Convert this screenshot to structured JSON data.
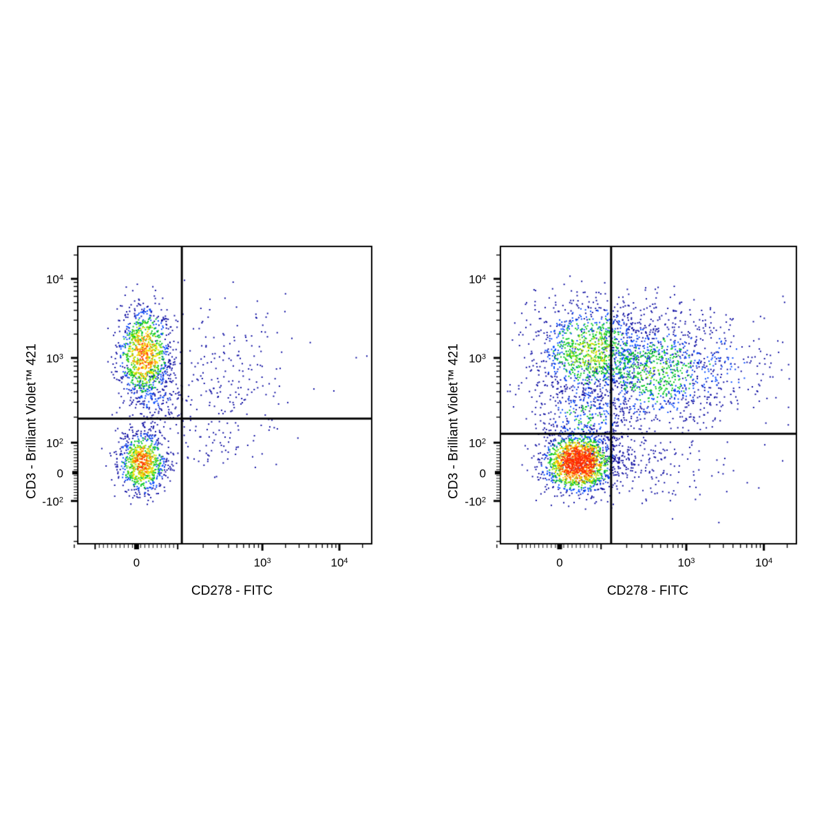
{
  "figure": {
    "background": "#ffffff",
    "frame_color": "#000000",
    "text_color": "#000000",
    "gate_color": "#000000"
  },
  "chart_data": {
    "type": "scatter",
    "subtype": "flow-cytometry-pseudocolor-dot-plot",
    "panels": 2,
    "xlabel": "CD278 - FITC",
    "ylabel": "CD3 - Brilliant Violet™ 421",
    "scale": "biexponential (logicle), both axes",
    "grid": false,
    "legend": false,
    "x_axis": {
      "labeled_ticks": [
        {
          "label": "0",
          "pos": 0.2
        },
        {
          "label": "10^3",
          "pos": 0.628
        },
        {
          "label": "10^4",
          "pos": 0.89
        }
      ],
      "anchors": {
        "neg_e2": 0.059,
        "zero": 0.2,
        "e2": 0.34,
        "e3": 0.628,
        "e4": 0.89
      },
      "range_note": "approx -2x10^2 to 2.5x10^4"
    },
    "y_axis": {
      "labeled_ticks": [
        {
          "label": "10^4",
          "pos": 0.109
        },
        {
          "label": "10^3",
          "pos": 0.375
        },
        {
          "label": "10^2",
          "pos": 0.66
        },
        {
          "label": "0",
          "pos": 0.761
        },
        {
          "label": "-10^2",
          "pos": 0.856
        }
      ],
      "anchors": {
        "e4": 0.109,
        "e3": 0.375,
        "e2": 0.66,
        "zero": 0.761,
        "neg_e2": 0.856
      },
      "range_note": "approx -3x10^2 to 3x10^4"
    },
    "density_palette": {
      "stops": [
        [
          0.62,
          "#ff2d00"
        ],
        [
          0.48,
          "#ff8a00"
        ],
        [
          0.37,
          "#ffe000"
        ],
        [
          0.3,
          "#a8e000"
        ],
        [
          0.165,
          "#00c81e"
        ],
        [
          0.095,
          "#0048ff"
        ],
        [
          0.0,
          "#0a0aa0"
        ]
      ]
    },
    "dot_size": 2,
    "seed": 1337,
    "plots": [
      {
        "name": "left-panel",
        "gate_x": 0.354,
        "gate_y": 0.579,
        "clusters": [
          {
            "name": "cd3pos-icosneg-dense",
            "cx": 0.227,
            "cy": 0.363,
            "sx": 0.044,
            "sy": 0.079,
            "n": 1050,
            "heat": 0.55
          },
          {
            "name": "cd3pos-lower-tail",
            "cx": 0.262,
            "cy": 0.5,
            "sx": 0.055,
            "sy": 0.058,
            "n": 170,
            "heat": 0.12
          },
          {
            "name": "cd3neg-icosneg-dense",
            "cx": 0.22,
            "cy": 0.727,
            "sx": 0.04,
            "sy": 0.051,
            "n": 850,
            "heat": 0.55
          },
          {
            "name": "upper-right-scatter",
            "cx": 0.5,
            "cy": 0.43,
            "sx": 0.115,
            "sy": 0.105,
            "n": 185,
            "heat": 0.0
          },
          {
            "name": "lower-right-scatter",
            "cx": 0.48,
            "cy": 0.655,
            "sx": 0.1,
            "sy": 0.065,
            "n": 60,
            "heat": 0.0
          },
          {
            "name": "outliers",
            "cx": 0.45,
            "cy": 0.35,
            "sx": 0.25,
            "sy": 0.18,
            "n": 22,
            "heat": 0.0
          }
        ]
      },
      {
        "name": "right-panel",
        "gate_x": 0.374,
        "gate_y": 0.63,
        "clusters": [
          {
            "name": "cd3neg-icoslow-dense",
            "cx": 0.263,
            "cy": 0.727,
            "sx": 0.056,
            "sy": 0.048,
            "n": 1600,
            "heat": 0.9
          },
          {
            "name": "cd3neg-right-tail",
            "cx": 0.38,
            "cy": 0.725,
            "sx": 0.1,
            "sy": 0.05,
            "n": 220,
            "heat": 0.06
          },
          {
            "name": "cd3pos-cloud-left",
            "cx": 0.309,
            "cy": 0.352,
            "sx": 0.1,
            "sy": 0.085,
            "n": 1200,
            "heat": 0.3
          },
          {
            "name": "cd3pos-cloud-right",
            "cx": 0.519,
            "cy": 0.421,
            "sx": 0.115,
            "sy": 0.095,
            "n": 1000,
            "heat": 0.24
          },
          {
            "name": "cd3pos-right-tail",
            "cx": 0.72,
            "cy": 0.4,
            "sx": 0.12,
            "sy": 0.1,
            "n": 260,
            "heat": 0.12
          },
          {
            "name": "bridge-mid",
            "cx": 0.286,
            "cy": 0.58,
            "sx": 0.075,
            "sy": 0.075,
            "n": 380,
            "heat": 0.18
          },
          {
            "name": "lower-right-scatter",
            "cx": 0.58,
            "cy": 0.73,
            "sx": 0.12,
            "sy": 0.065,
            "n": 80,
            "heat": 0.0
          },
          {
            "name": "outliers",
            "cx": 0.5,
            "cy": 0.4,
            "sx": 0.28,
            "sy": 0.2,
            "n": 26,
            "heat": 0.0
          }
        ]
      }
    ]
  }
}
